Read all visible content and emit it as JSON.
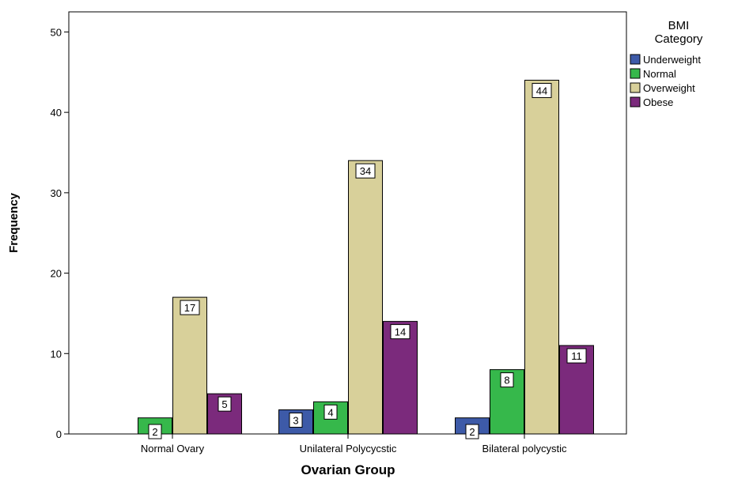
{
  "colors": {
    "Underweight": "#3d5aa8",
    "Normal": "#36b84b",
    "Overweight": "#d8d09a",
    "Obese": "#7b2a7c"
  },
  "chart_data": {
    "type": "bar",
    "xlabel": "Ovarian Group",
    "ylabel": "Frequency",
    "categories": [
      "Normal Ovary",
      "Unilateral Polycycstic",
      "Bilateral polycystic"
    ],
    "yticks": [
      0,
      10,
      20,
      30,
      40,
      50
    ],
    "ylim": [
      0,
      52.5
    ],
    "grid": false,
    "legend": {
      "title_lines": [
        "BMI",
        "Category"
      ],
      "placement": "top-right, outside plot"
    },
    "series": [
      {
        "name": "Underweight",
        "values": [
          null,
          3,
          2
        ]
      },
      {
        "name": "Normal",
        "values": [
          2,
          4,
          8
        ]
      },
      {
        "name": "Overweight",
        "values": [
          17,
          34,
          44
        ]
      },
      {
        "name": "Obese",
        "values": [
          5,
          14,
          11
        ]
      }
    ]
  }
}
